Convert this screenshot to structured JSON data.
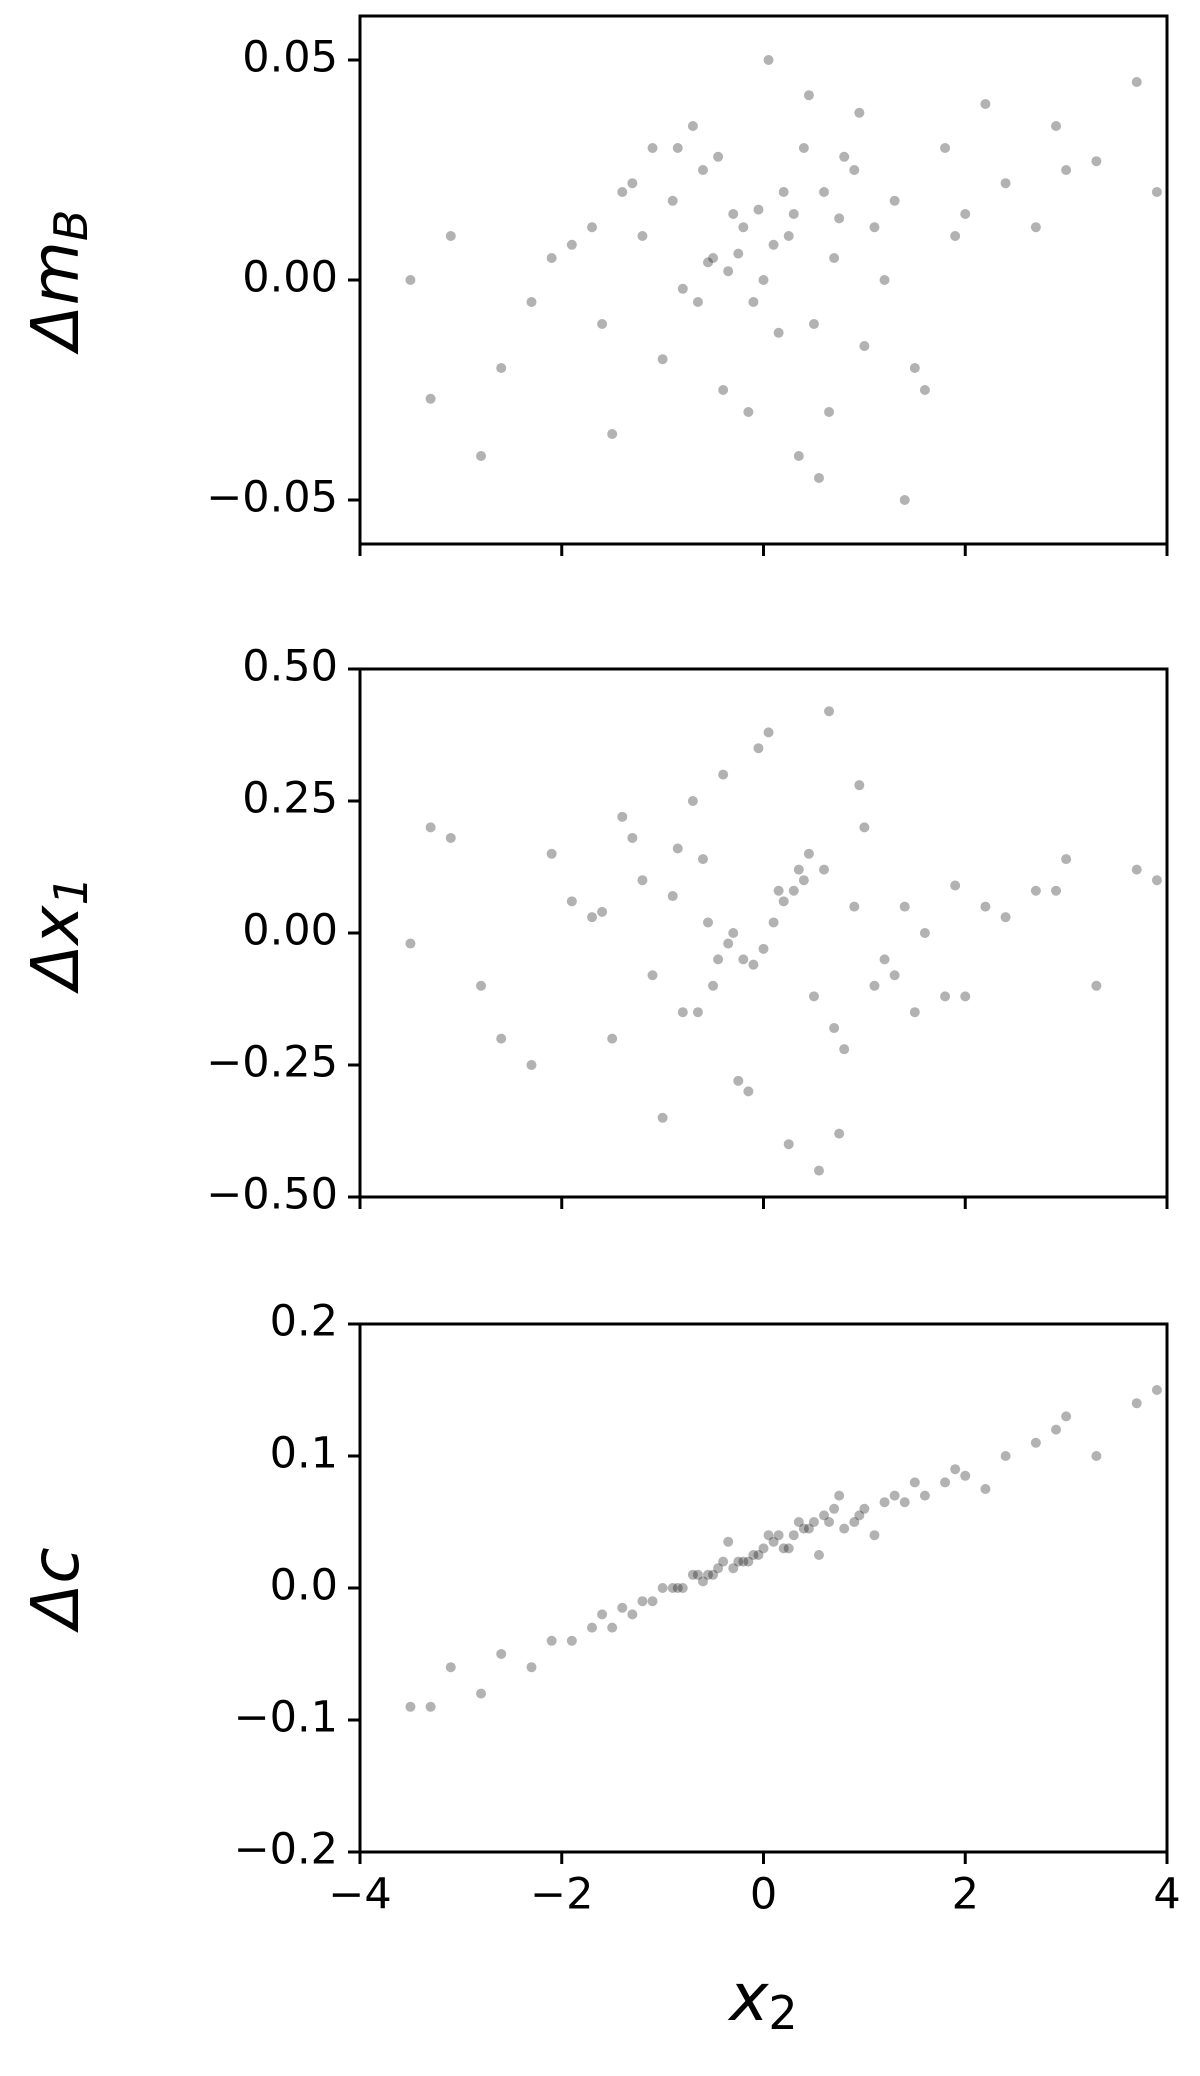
{
  "chart_data": [
    {
      "type": "scatter",
      "ylabel": "Δm",
      "ylabel_sub": "B",
      "color": "#000000",
      "alpha": 0.3,
      "xlim": [
        -4,
        4
      ],
      "ylim": [
        -0.06,
        0.06
      ],
      "yticks": [
        {
          "value": -0.05,
          "label": "−0.05"
        },
        {
          "value": 0,
          "label": "0.00"
        },
        0.05
      ],
      "x": [
        -0.2,
        0.1,
        0.3,
        -0.5,
        0.6,
        -0.8,
        0.9,
        -1.2,
        1.3,
        -1.6,
        1.8,
        -2.1,
        2.4,
        -2.6,
        2.9,
        -3.1,
        3.3,
        -3.5,
        3.7,
        0.0,
        0.2,
        -0.1,
        0.4,
        -0.3,
        0.5,
        -0.6,
        0.7,
        -0.9,
        1.0,
        -1.1,
        1.2,
        -1.4,
        1.5,
        -1.7,
        1.9,
        -2.3,
        2.2,
        -0.4,
        0.8,
        0.05,
        -0.15,
        0.35,
        -0.7,
        1.1,
        -1.0,
        1.6,
        -1.3,
        2.0,
        -1.9,
        0.25,
        -0.05,
        0.15,
        -0.25,
        0.45,
        -0.45,
        0.65,
        -0.65,
        0.95,
        -1.5,
        2.7,
        -2.8,
        3.0,
        -3.3,
        3.9,
        -0.35,
        0.55,
        1.4,
        -0.85,
        0.75,
        -0.55
      ],
      "values": [
        0.012,
        0.008,
        0.015,
        0.005,
        0.02,
        -0.002,
        0.025,
        0.01,
        0.018,
        -0.01,
        0.03,
        0.005,
        0.022,
        -0.02,
        0.035,
        0.01,
        0.027,
        0.0,
        0.045,
        0.0,
        0.02,
        -0.005,
        0.03,
        0.015,
        -0.01,
        0.025,
        0.005,
        0.018,
        -0.015,
        0.03,
        0.0,
        0.02,
        -0.02,
        0.012,
        0.01,
        -0.005,
        0.04,
        -0.025,
        0.028,
        0.05,
        -0.03,
        -0.04,
        0.035,
        0.012,
        -0.018,
        -0.025,
        0.022,
        0.015,
        0.008,
        0.01,
        0.016,
        -0.012,
        0.006,
        0.042,
        0.028,
        -0.03,
        -0.005,
        0.038,
        -0.035,
        0.012,
        -0.04,
        0.025,
        -0.027,
        0.02,
        0.002,
        -0.045,
        -0.05,
        0.03,
        0.014,
        0.004
      ]
    },
    {
      "type": "scatter",
      "ylabel": "Δx",
      "ylabel_sub": "1",
      "color": "#000000",
      "alpha": 0.3,
      "xlim": [
        -4,
        4
      ],
      "ylim": [
        -0.5,
        0.5
      ],
      "yticks": [
        {
          "value": -0.5,
          "label": "−0.50"
        },
        {
          "value": -0.25,
          "label": "−0.25"
        },
        {
          "value": 0,
          "label": "0.00"
        },
        0.25,
        {
          "value": 0.5,
          "label": "0.50"
        }
      ],
      "x": [
        -0.2,
        0.1,
        0.3,
        -0.5,
        0.6,
        -0.8,
        0.9,
        -1.2,
        1.3,
        -1.6,
        1.8,
        -2.1,
        2.4,
        -2.6,
        2.9,
        -3.1,
        3.3,
        -3.5,
        3.7,
        0.0,
        0.2,
        -0.1,
        0.4,
        -0.3,
        0.5,
        -0.6,
        0.7,
        -0.9,
        1.0,
        -1.1,
        1.2,
        -1.4,
        1.5,
        -1.7,
        1.9,
        -2.3,
        2.2,
        -0.4,
        0.8,
        0.05,
        -0.15,
        0.35,
        -0.7,
        1.1,
        -1.0,
        1.6,
        -1.3,
        2.0,
        -1.9,
        0.25,
        -0.05,
        0.15,
        -0.25,
        0.45,
        -0.45,
        0.65,
        -0.65,
        0.95,
        -1.5,
        2.7,
        -2.8,
        3.0,
        -3.3,
        3.9,
        -0.35,
        0.55,
        1.4,
        -0.85,
        0.75,
        -0.55
      ],
      "values": [
        -0.05,
        0.02,
        0.08,
        -0.1,
        0.12,
        -0.15,
        0.05,
        0.1,
        -0.08,
        0.04,
        -0.12,
        0.15,
        0.03,
        -0.2,
        0.08,
        0.18,
        -0.1,
        -0.02,
        0.12,
        -0.03,
        0.06,
        -0.06,
        0.1,
        0.0,
        -0.12,
        0.14,
        -0.18,
        0.07,
        0.2,
        -0.08,
        -0.05,
        0.22,
        -0.15,
        0.03,
        0.09,
        -0.25,
        0.05,
        0.3,
        -0.22,
        0.38,
        -0.3,
        0.12,
        0.25,
        -0.1,
        -0.35,
        0.0,
        0.18,
        -0.12,
        0.06,
        -0.4,
        0.35,
        0.08,
        -0.28,
        0.15,
        -0.05,
        0.42,
        -0.15,
        0.28,
        -0.2,
        0.08,
        -0.1,
        0.14,
        0.2,
        0.1,
        -0.02,
        -0.45,
        0.05,
        0.16,
        -0.38,
        0.02
      ]
    },
    {
      "type": "scatter",
      "ylabel": "Δc",
      "xlabel": "x",
      "xlabel_sub": "2",
      "color": "#000000",
      "alpha": 0.3,
      "xlim": [
        -4,
        4
      ],
      "ylim": [
        -0.2,
        0.2
      ],
      "xticks": [
        {
          "value": -4,
          "label": "−4"
        },
        {
          "value": -2,
          "label": "−2"
        },
        0,
        2,
        4
      ],
      "yticks": [
        {
          "value": -0.2,
          "label": "−0.2"
        },
        {
          "value": -0.1,
          "label": "−0.1"
        },
        {
          "value": 0,
          "label": "0.0"
        },
        0.1,
        0.2
      ],
      "x": [
        -0.2,
        0.1,
        0.3,
        -0.5,
        0.6,
        -0.8,
        0.9,
        -1.2,
        1.3,
        -1.6,
        1.8,
        -2.1,
        2.4,
        -2.6,
        2.9,
        -3.1,
        3.3,
        -3.5,
        3.7,
        0.0,
        0.2,
        -0.1,
        0.4,
        -0.3,
        0.5,
        -0.6,
        0.7,
        -0.9,
        1.0,
        -1.1,
        1.2,
        -1.4,
        1.5,
        -1.7,
        1.9,
        -2.3,
        2.2,
        -0.4,
        0.8,
        0.05,
        -0.15,
        0.35,
        -0.7,
        1.1,
        -1.0,
        1.6,
        -1.3,
        2.0,
        -1.9,
        0.25,
        -0.05,
        0.15,
        -0.25,
        0.45,
        -0.45,
        0.65,
        -0.65,
        0.95,
        -1.5,
        2.7,
        -2.8,
        3.0,
        -3.3,
        3.9,
        -0.35,
        0.55,
        1.4,
        -0.85,
        0.75,
        -0.55
      ],
      "values": [
        0.02,
        0.035,
        0.04,
        0.01,
        0.055,
        0.0,
        0.05,
        -0.01,
        0.07,
        -0.02,
        0.08,
        -0.04,
        0.1,
        -0.05,
        0.12,
        -0.06,
        0.1,
        -0.09,
        0.14,
        0.03,
        0.03,
        0.025,
        0.045,
        0.015,
        0.05,
        0.005,
        0.06,
        0.0,
        0.06,
        -0.01,
        0.065,
        -0.015,
        0.08,
        -0.03,
        0.09,
        -0.06,
        0.075,
        0.02,
        0.045,
        0.04,
        0.02,
        0.05,
        0.01,
        0.04,
        0.0,
        0.07,
        -0.02,
        0.085,
        -0.04,
        0.03,
        0.025,
        0.04,
        0.02,
        0.045,
        0.015,
        0.05,
        0.01,
        0.055,
        -0.03,
        0.11,
        -0.08,
        0.13,
        -0.09,
        0.15,
        0.035,
        0.025,
        0.065,
        0.0,
        0.07,
        0.01
      ]
    }
  ]
}
